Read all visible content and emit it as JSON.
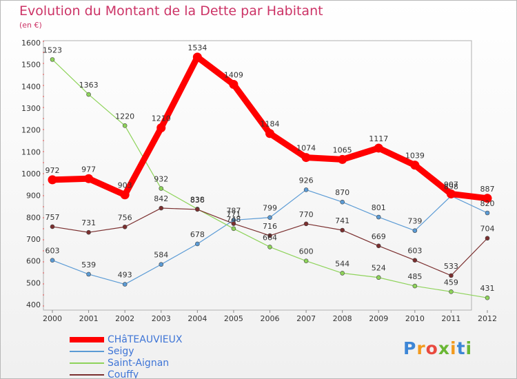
{
  "title": "Evolution du Montant de la Dette par Habitant",
  "subtitle": "(en €)",
  "brand": {
    "letters": [
      "P",
      "r",
      "o",
      "x",
      "i",
      "t",
      "i"
    ],
    "colors": [
      "#3d86d6",
      "#f29a1e",
      "#e94a3f",
      "#6ab734",
      "#f29a1e",
      "#3d86d6",
      "#6ab734"
    ]
  },
  "chart_data": {
    "type": "line",
    "title": "Evolution du Montant de la Dette par Habitant",
    "subtitle": "(en €)",
    "x": [
      "2000",
      "2001",
      "2002",
      "2003",
      "2004",
      "2005",
      "2006",
      "2007",
      "2008",
      "2009",
      "2010",
      "2011",
      "2012"
    ],
    "ylim": [
      400,
      1600
    ],
    "yticks": [
      400,
      500,
      600,
      700,
      800,
      900,
      1000,
      1100,
      1200,
      1300,
      1400,
      1500,
      1600
    ],
    "grid": false,
    "legend": "bottom-left",
    "series": [
      {
        "name": "CHâTEAUVIEUX",
        "color": "#ff0000",
        "values": [
          972,
          977,
          903,
          1210,
          1534,
          1409,
          1184,
          1074,
          1065,
          1117,
          1039,
          907,
          887
        ]
      },
      {
        "name": "Seigy",
        "color": "#5b9bd5",
        "values": [
          603,
          539,
          493,
          584,
          678,
          787,
          799,
          926,
          870,
          801,
          739,
          898,
          820
        ]
      },
      {
        "name": "Saint-Aignan",
        "color": "#8ed35a",
        "values": [
          1523,
          1363,
          1220,
          932,
          838,
          748,
          664,
          600,
          544,
          524,
          485,
          459,
          431
        ]
      },
      {
        "name": "Couffy",
        "color": "#7b2f2f",
        "values": [
          757,
          731,
          756,
          842,
          836,
          771,
          716,
          770,
          741,
          669,
          603,
          533,
          704
        ]
      }
    ]
  }
}
